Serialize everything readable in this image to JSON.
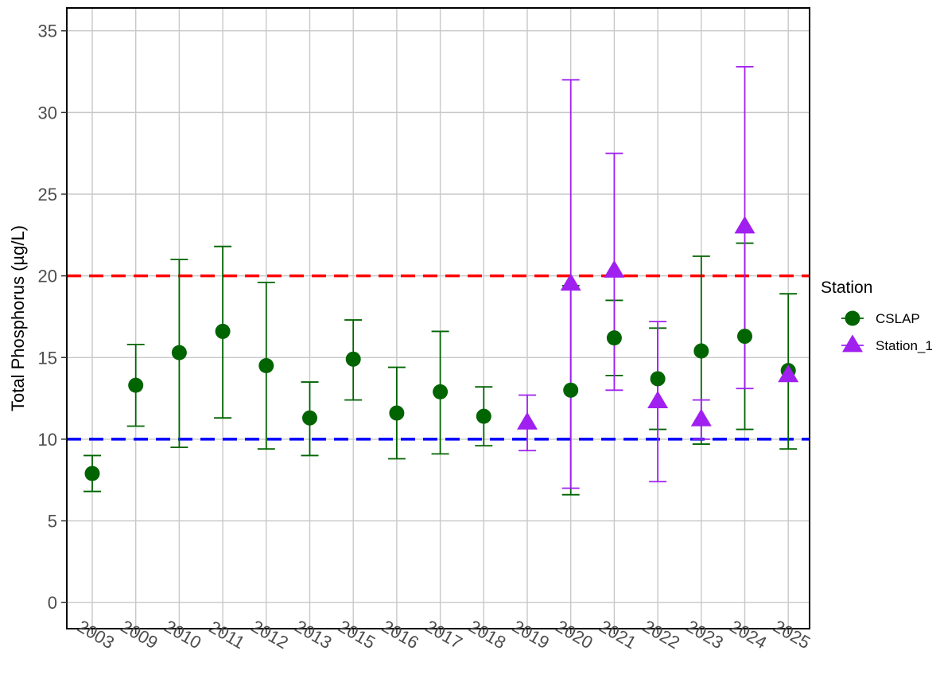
{
  "chart_data": {
    "type": "scatter",
    "title": "",
    "xlabel": "",
    "ylabel": "Total Phosphorus (µg/L)",
    "categories": [
      "2003",
      "2009",
      "2010",
      "2011",
      "2012",
      "2013",
      "2015",
      "2016",
      "2017",
      "2018",
      "2019",
      "2020",
      "2021",
      "2022",
      "2023",
      "2024",
      "2025"
    ],
    "ylim": [
      -1.6,
      36.4
    ],
    "yticks": [
      0,
      5,
      10,
      15,
      20,
      25,
      30,
      35
    ],
    "grid": true,
    "legend": {
      "title": "Station",
      "position": "right"
    },
    "reference_lines": [
      {
        "y": 20,
        "color": "#ff0000",
        "style": "dashed"
      },
      {
        "y": 10,
        "color": "#0000ff",
        "style": "dashed"
      }
    ],
    "series": [
      {
        "name": "CSLAP",
        "marker": "circle",
        "color": "#006400",
        "points": [
          {
            "x": "2003",
            "y": 7.9,
            "low": 6.8,
            "high": 9.0
          },
          {
            "x": "2009",
            "y": 13.3,
            "low": 10.8,
            "high": 15.8
          },
          {
            "x": "2010",
            "y": 15.3,
            "low": 9.5,
            "high": 21.0
          },
          {
            "x": "2011",
            "y": 16.6,
            "low": 11.3,
            "high": 21.8
          },
          {
            "x": "2012",
            "y": 14.5,
            "low": 9.4,
            "high": 19.6
          },
          {
            "x": "2013",
            "y": 11.3,
            "low": 9.0,
            "high": 13.5
          },
          {
            "x": "2015",
            "y": 14.9,
            "low": 12.4,
            "high": 17.3
          },
          {
            "x": "2016",
            "y": 11.6,
            "low": 8.8,
            "high": 14.4
          },
          {
            "x": "2017",
            "y": 12.9,
            "low": 9.1,
            "high": 16.6
          },
          {
            "x": "2018",
            "y": 11.4,
            "low": 9.6,
            "high": 13.2
          },
          {
            "x": "2020",
            "y": 13.0,
            "low": 6.6,
            "high": 19.4
          },
          {
            "x": "2021",
            "y": 16.2,
            "low": 13.9,
            "high": 18.5
          },
          {
            "x": "2022",
            "y": 13.7,
            "low": 10.6,
            "high": 16.8
          },
          {
            "x": "2023",
            "y": 15.4,
            "low": 9.7,
            "high": 21.2
          },
          {
            "x": "2024",
            "y": 16.3,
            "low": 10.6,
            "high": 22.0
          },
          {
            "x": "2025",
            "y": 14.2,
            "low": 9.4,
            "high": 18.9
          }
        ]
      },
      {
        "name": "Station_1",
        "marker": "triangle",
        "color": "#a020f0",
        "points": [
          {
            "x": "2019",
            "y": 11.0,
            "low": 9.3,
            "high": 12.7
          },
          {
            "x": "2020",
            "y": 19.5,
            "low": 7.0,
            "high": 32.0
          },
          {
            "x": "2021",
            "y": 20.3,
            "low": 13.0,
            "high": 27.5
          },
          {
            "x": "2022",
            "y": 12.3,
            "low": 7.4,
            "high": 17.2
          },
          {
            "x": "2023",
            "y": 11.2,
            "low": 10.0,
            "high": 12.4
          },
          {
            "x": "2024",
            "y": 23.0,
            "low": 13.1,
            "high": 32.8
          },
          {
            "x": "2025",
            "y": 13.9,
            "low": 13.9,
            "high": 13.9
          }
        ]
      }
    ]
  }
}
